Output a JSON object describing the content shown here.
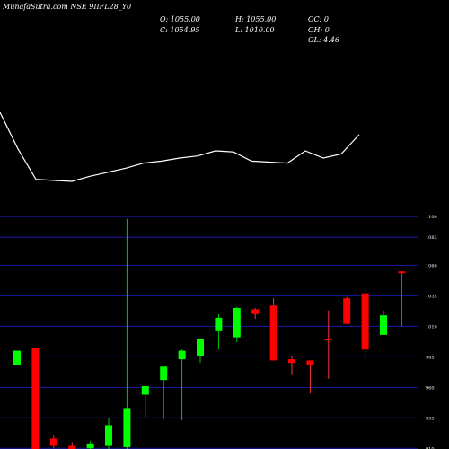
{
  "chart_data": {
    "type": "candlestick",
    "title": "MunafaSutra.com NSE 9IIFL28_Y0",
    "ohlc_summary": {
      "open": "O: 1055.00",
      "high": "H: 1055.00",
      "close": "C: 1054.95",
      "low": "L: 1010.00",
      "oc": "OC: 0",
      "oh": "OH: 0",
      "ol": "OL: 4.46"
    },
    "price_axis": {
      "ticks": [
        {
          "label": "1100",
          "value": 1100
        },
        {
          "label": "1083",
          "value": 1083
        },
        {
          "label": "1060",
          "value": 1060
        },
        {
          "label": "1035",
          "value": 1035
        },
        {
          "label": "1010",
          "value": 1010
        },
        {
          "label": "985",
          "value": 985
        },
        {
          "label": "960",
          "value": 960
        },
        {
          "label": "935",
          "value": 935
        },
        {
          "label": "910",
          "value": 910
        }
      ],
      "range": [
        908,
        1103
      ]
    },
    "colors": {
      "up": "#00ff00",
      "down": "#ff0000",
      "wick_up": "#00cc00",
      "wick_down": "#ff3333",
      "grid": "#1a1aa6",
      "indicator": "#ffffff",
      "background": "#000000"
    },
    "candles": [
      {
        "open": 978,
        "close": 990,
        "high": 990,
        "low": 978
      },
      {
        "open": 992,
        "close": 908,
        "high": 992,
        "low": 905
      },
      {
        "open": 918,
        "close": 912,
        "high": 921,
        "low": 910
      },
      {
        "open": 912,
        "close": 896,
        "high": 915,
        "low": 893
      },
      {
        "open": 910,
        "close": 914,
        "high": 916,
        "low": 896
      },
      {
        "open": 912,
        "close": 929,
        "high": 935,
        "low": 905
      },
      {
        "open": 911,
        "close": 943,
        "high": 1098,
        "low": 904
      },
      {
        "open": 954,
        "close": 961,
        "high": 961,
        "low": 936
      },
      {
        "open": 966,
        "close": 977,
        "high": 977,
        "low": 934
      },
      {
        "open": 983,
        "close": 990,
        "high": 991,
        "low": 933
      },
      {
        "open": 986,
        "close": 1000,
        "high": 1000,
        "low": 980
      },
      {
        "open": 1006,
        "close": 1017,
        "high": 1020,
        "low": 991
      },
      {
        "open": 1001,
        "close": 1025,
        "high": 1026,
        "low": 997
      },
      {
        "open": 1024,
        "close": 1020,
        "high": 1025,
        "low": 1016
      },
      {
        "open": 1027,
        "close": 982,
        "high": 1033,
        "low": 982
      },
      {
        "open": 983,
        "close": 980,
        "high": 986,
        "low": 970
      },
      {
        "open": 982,
        "close": 978,
        "high": 982,
        "low": 955
      },
      {
        "open": 1000,
        "close": 999,
        "high": 1023,
        "low": 967
      },
      {
        "open": 1033,
        "close": 1012,
        "high": 1034,
        "low": 1012
      },
      {
        "open": 1037,
        "close": 991,
        "high": 1043,
        "low": 983
      },
      {
        "open": 1003,
        "close": 1019,
        "high": 1023,
        "low": 1003
      },
      {
        "open": 1055,
        "close": 1054.95,
        "high": 1055,
        "low": 1010
      }
    ],
    "indicator_line": [
      94,
      58,
      28,
      27,
      26,
      31,
      35,
      39,
      44,
      46,
      49,
      51,
      56,
      55,
      46,
      45,
      44,
      56,
      49,
      53,
      72
    ]
  }
}
